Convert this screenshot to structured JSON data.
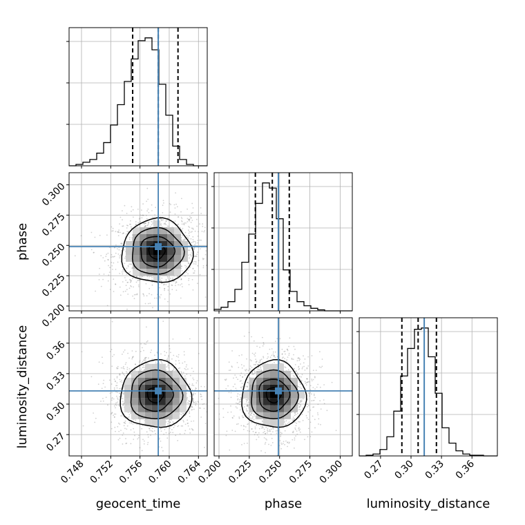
{
  "chart_data": {
    "type": "corner",
    "parameters": [
      "geocent_time",
      "phase",
      "luminosity_distance"
    ],
    "axis_labels": {
      "geocent_time": "geocent_time",
      "phase": "phase",
      "luminosity_distance": "luminosity_distance"
    },
    "truths": {
      "geocent_time": 0.7585,
      "phase": 0.249,
      "luminosity_distance": 0.313
    },
    "quantiles": {
      "geocent_time": [
        0.755,
        0.7585,
        0.7612
      ],
      "phase": [
        0.23,
        0.244,
        0.258
      ],
      "luminosity_distance": [
        0.291,
        0.307,
        0.325
      ]
    },
    "ranges": {
      "geocent_time": [
        0.7463,
        0.7652
      ],
      "phase": [
        0.196,
        0.31
      ],
      "luminosity_distance": [
        0.249,
        0.385
      ]
    },
    "ticks": {
      "geocent_time": {
        "values": [
          0.748,
          0.752,
          0.756,
          0.76,
          0.764
        ],
        "labels": [
          "0.748",
          "0.752",
          "0.756",
          "0.760",
          "0.764"
        ]
      },
      "phase": {
        "values": [
          0.2,
          0.225,
          0.25,
          0.275,
          0.3
        ],
        "labels": [
          "0.200",
          "0.225",
          "0.250",
          "0.275",
          "0.300"
        ]
      },
      "luminosity_distance": {
        "values": [
          0.27,
          0.3,
          0.33,
          0.36
        ],
        "labels": [
          "0.27",
          "0.30",
          "0.33",
          "0.36"
        ]
      }
    },
    "histograms": {
      "geocent_time": [
        0,
        2,
        5,
        9,
        18,
        33,
        58,
        87,
        120,
        152,
        178,
        182,
        165,
        116,
        72,
        28,
        9,
        2,
        0,
        0
      ],
      "phase": [
        3,
        7,
        18,
        42,
        95,
        150,
        210,
        250,
        240,
        180,
        80,
        38,
        18,
        10,
        5,
        2,
        0,
        0,
        0,
        0
      ],
      "luminosity_distance": [
        0,
        1,
        3,
        10,
        30,
        70,
        125,
        168,
        198,
        200,
        155,
        98,
        44,
        20,
        8,
        3,
        1,
        1,
        0,
        0
      ]
    },
    "density_2d": {
      "phase_vs_geocent_time": {
        "x_center": 0.7583,
        "y_center": 0.245,
        "x_sigma": 0.0022,
        "y_sigma": 0.012,
        "correlation": 0.1
      },
      "luminosity_distance_vs_geocent_time": {
        "x_center": 0.7581,
        "y_center": 0.309,
        "x_sigma": 0.0022,
        "y_sigma": 0.015,
        "correlation": 0.0
      },
      "luminosity_distance_vs_phase": {
        "x_center": 0.245,
        "y_center": 0.309,
        "x_sigma": 0.012,
        "y_sigma": 0.015,
        "correlation": 0.0
      }
    },
    "contour_levels": [
      0.118,
      0.393,
      0.675,
      0.864
    ],
    "grid": true,
    "colors": {
      "hist": "#000000",
      "truth": "#4682b4",
      "quantile": "#000000",
      "grid": "#b0b0b0"
    }
  }
}
